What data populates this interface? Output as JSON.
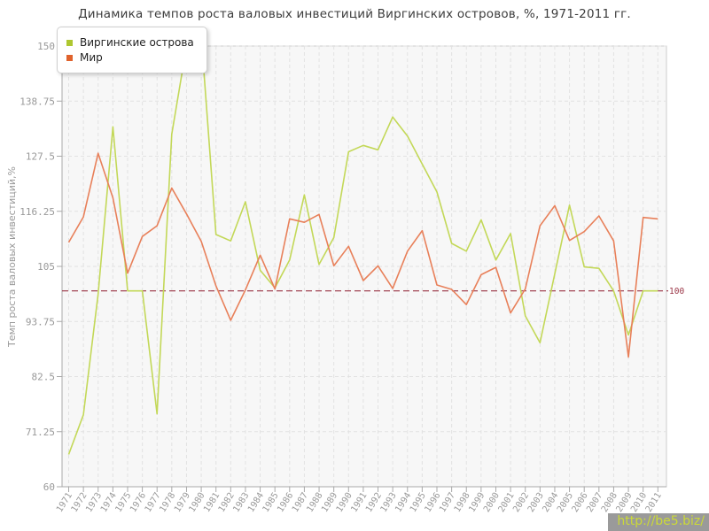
{
  "title": "Динамика темпов роста валовых инвестиций Виргинских островов, %, 1971-2011 гг.",
  "y_axis_label": "Темп роста валовых инвестиций,%",
  "watermark": "http://be5.biz/",
  "legend": [
    {
      "label": "Виргинские острова",
      "color": "#aec730"
    },
    {
      "label": "Мир",
      "color": "#e0622c"
    }
  ],
  "reference_line": {
    "value": 100,
    "label": "100",
    "color": "#993344"
  },
  "colors": {
    "plot_background": "#f7f7f7",
    "grid": "#e2e2e2",
    "plot_border": "#cccccc",
    "axis": "#a8a8a8",
    "tick_text": "#999999",
    "series_virgin_islands": "#c3d858",
    "series_world": "#e8805a"
  },
  "chart_data": {
    "type": "line",
    "title": "Динамика темпов роста валовых инвестиций Виргинских островов, %, 1971-2011 гг.",
    "xlabel": "",
    "ylabel": "Темп роста валовых инвестиций,%",
    "ylim": [
      60,
      150
    ],
    "yticks": [
      60,
      71.25,
      82.5,
      93.75,
      105,
      116.25,
      127.5,
      138.75,
      150
    ],
    "grid": true,
    "legend_position": "top-left",
    "reference_value": 100,
    "x": [
      1971,
      1972,
      1973,
      1974,
      1975,
      1976,
      1977,
      1978,
      1979,
      1980,
      1981,
      1982,
      1983,
      1984,
      1985,
      1986,
      1987,
      1988,
      1989,
      1990,
      1991,
      1992,
      1993,
      1994,
      1995,
      1996,
      1997,
      1998,
      1999,
      2000,
      2001,
      2002,
      2003,
      2004,
      2005,
      2006,
      2007,
      2008,
      2009,
      2010,
      2011
    ],
    "series": [
      {
        "name": "Виргинские острова",
        "values": [
          66.6,
          74.7,
          99.3,
          133.5,
          100,
          100,
          74.9,
          132,
          150,
          152,
          111.5,
          110.2,
          118.2,
          104.2,
          100.6,
          106.3,
          119.6,
          105.4,
          110.9,
          128.4,
          129.7,
          128.8,
          135.5,
          131.6,
          125.9,
          120.2,
          109.7,
          108.1,
          114.5,
          106.3,
          111.7,
          94.9,
          89.4,
          103.5,
          117.5,
          104.9,
          104.6,
          100,
          91,
          100,
          100
        ]
      },
      {
        "name": "Мир",
        "values": [
          109.9,
          115.1,
          128.1,
          119,
          103.6,
          111.1,
          113.3,
          121,
          115.7,
          110.1,
          101,
          94,
          100.2,
          107.3,
          100.4,
          114.7,
          114,
          115.6,
          105.1,
          109.1,
          102.1,
          105.1,
          100.5,
          108.1,
          112.3,
          101.2,
          100.3,
          97.2,
          103.3,
          104.8,
          95.5,
          100.4,
          113.3,
          117.4,
          110.3,
          112.1,
          115.3,
          110.2,
          86.5,
          115,
          114.7
        ]
      }
    ]
  }
}
